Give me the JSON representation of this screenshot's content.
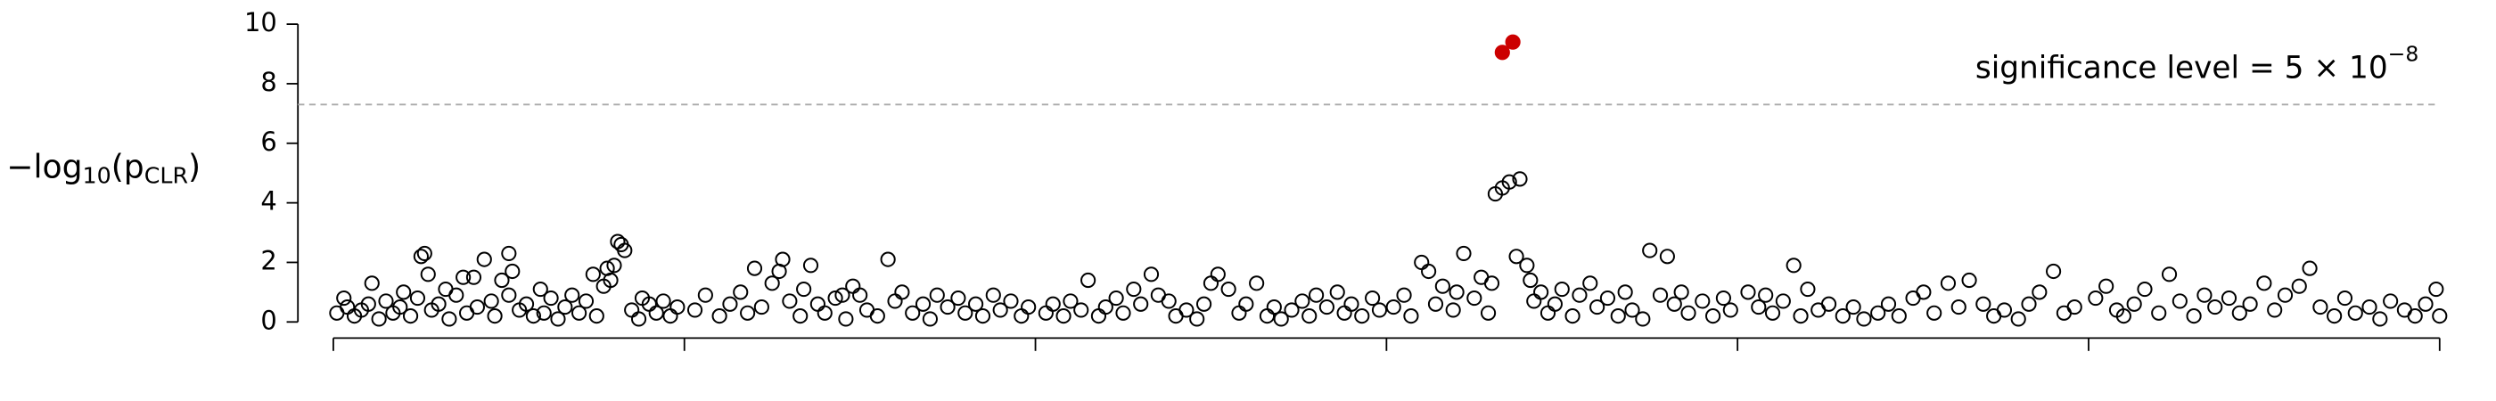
{
  "chart_data": {
    "type": "scatter",
    "ylabel": [
      "−log",
      "10",
      "(p",
      "CLR",
      ")"
    ],
    "annotation": [
      "significance level = 5 × 10",
      "−8"
    ],
    "hline": 7.3,
    "xlim": [
      0,
      6
    ],
    "xticks": [
      0,
      1,
      2,
      3,
      4,
      5,
      6
    ],
    "ylim": [
      0,
      10
    ],
    "yticks": [
      0,
      2,
      4,
      6,
      8,
      10
    ],
    "series": [
      {
        "color": "#000000",
        "filled": false,
        "x": [
          0.01,
          0.03,
          0.04,
          0.06,
          0.08,
          0.1,
          0.11,
          0.13,
          0.15,
          0.17,
          0.19,
          0.2,
          0.22,
          0.24,
          0.25,
          0.26,
          0.27,
          0.28,
          0.3,
          0.32,
          0.33,
          0.35,
          0.37,
          0.38,
          0.4,
          0.41,
          0.43,
          0.45,
          0.46,
          0.48,
          0.5,
          0.51,
          0.53,
          0.5,
          0.55,
          0.57,
          0.59,
          0.6,
          0.62,
          0.64,
          0.66,
          0.68,
          0.7,
          0.72,
          0.74,
          0.75,
          0.77,
          0.78,
          0.8,
          0.81,
          0.82,
          0.83,
          0.79,
          0.85,
          0.87,
          0.88,
          0.9,
          0.92,
          0.94,
          0.96,
          0.98,
          1.03,
          1.06,
          1.1,
          1.13,
          1.16,
          1.18,
          1.2,
          1.22,
          1.25,
          1.27,
          1.28,
          1.3,
          1.33,
          1.36,
          1.38,
          1.4,
          1.43,
          1.46,
          1.48,
          1.5,
          1.52,
          1.55,
          1.58,
          1.6,
          1.62,
          1.65,
          1.68,
          1.7,
          1.72,
          1.75,
          1.78,
          1.8,
          1.83,
          1.85,
          1.88,
          1.9,
          1.93,
          1.96,
          1.98,
          1.45,
          1.34,
          2.03,
          2.05,
          2.08,
          2.1,
          2.13,
          2.15,
          2.18,
          2.2,
          2.23,
          2.25,
          2.28,
          2.3,
          2.33,
          2.35,
          2.38,
          2.4,
          2.43,
          2.46,
          2.48,
          2.5,
          2.52,
          2.55,
          2.58,
          2.6,
          2.63,
          2.66,
          2.68,
          2.7,
          2.73,
          2.76,
          2.78,
          2.8,
          2.83,
          2.86,
          2.88,
          2.9,
          2.93,
          2.96,
          2.98,
          3.02,
          3.05,
          3.07,
          3.1,
          3.12,
          3.14,
          3.16,
          3.19,
          3.2,
          3.22,
          3.25,
          3.27,
          3.29,
          3.3,
          3.31,
          3.33,
          3.35,
          3.38,
          3.37,
          3.4,
          3.41,
          3.42,
          3.44,
          3.46,
          3.48,
          3.5,
          3.53,
          3.55,
          3.58,
          3.6,
          3.63,
          3.66,
          3.68,
          3.7,
          3.73,
          3.75,
          3.78,
          3.8,
          3.82,
          3.84,
          3.86,
          3.9,
          3.93,
          3.96,
          3.98,
          4.03,
          4.06,
          4.08,
          4.1,
          4.13,
          4.16,
          4.18,
          4.2,
          4.23,
          4.26,
          4.3,
          4.33,
          4.36,
          4.4,
          4.43,
          4.46,
          4.5,
          4.53,
          4.56,
          4.6,
          4.63,
          4.66,
          4.7,
          4.73,
          4.76,
          4.8,
          4.83,
          4.86,
          4.9,
          4.93,
          4.96,
          5.02,
          5.05,
          5.08,
          5.1,
          5.13,
          5.16,
          5.2,
          5.23,
          5.26,
          5.3,
          5.33,
          5.36,
          5.4,
          5.43,
          5.46,
          5.5,
          5.53,
          5.56,
          5.6,
          5.63,
          5.66,
          5.7,
          5.73,
          5.76,
          5.8,
          5.83,
          5.86,
          5.9,
          5.93,
          5.96,
          5.99,
          6.0
        ],
        "values": [
          0.3,
          0.8,
          0.5,
          0.2,
          0.4,
          0.6,
          1.3,
          0.1,
          0.7,
          0.3,
          0.5,
          1.0,
          0.2,
          0.8,
          2.2,
          2.3,
          1.6,
          0.4,
          0.6,
          1.1,
          0.1,
          0.9,
          1.5,
          0.3,
          1.5,
          0.5,
          2.1,
          0.7,
          0.2,
          1.4,
          0.9,
          1.7,
          0.4,
          2.3,
          0.6,
          0.2,
          1.1,
          0.3,
          0.8,
          0.1,
          0.5,
          0.9,
          0.3,
          0.7,
          1.6,
          0.2,
          1.2,
          1.8,
          1.9,
          2.7,
          2.6,
          2.4,
          1.4,
          0.4,
          0.1,
          0.8,
          0.6,
          0.3,
          0.7,
          0.2,
          0.5,
          0.4,
          0.9,
          0.2,
          0.6,
          1.0,
          0.3,
          1.8,
          0.5,
          1.3,
          1.7,
          2.1,
          0.7,
          0.2,
          1.9,
          0.6,
          0.3,
          0.8,
          0.1,
          1.2,
          0.9,
          0.4,
          0.2,
          2.1,
          0.7,
          1.0,
          0.3,
          0.6,
          0.1,
          0.9,
          0.5,
          0.8,
          0.3,
          0.6,
          0.2,
          0.9,
          0.4,
          0.7,
          0.2,
          0.5,
          0.9,
          1.1,
          0.3,
          0.6,
          0.2,
          0.7,
          0.4,
          1.4,
          0.2,
          0.5,
          0.8,
          0.3,
          1.1,
          0.6,
          1.6,
          0.9,
          0.7,
          0.2,
          0.4,
          0.1,
          0.6,
          1.3,
          1.6,
          1.1,
          0.3,
          0.6,
          1.3,
          0.2,
          0.5,
          0.1,
          0.4,
          0.7,
          0.2,
          0.9,
          0.5,
          1.0,
          0.3,
          0.6,
          0.2,
          0.8,
          0.4,
          0.5,
          0.9,
          0.2,
          2.0,
          1.7,
          0.6,
          1.2,
          0.4,
          1.0,
          2.3,
          0.8,
          1.5,
          0.3,
          1.3,
          4.3,
          4.5,
          4.7,
          4.8,
          2.2,
          1.9,
          1.4,
          0.7,
          1.0,
          0.3,
          0.6,
          1.1,
          0.2,
          0.9,
          1.3,
          0.5,
          0.8,
          0.2,
          1.0,
          0.4,
          0.1,
          2.4,
          0.9,
          2.2,
          0.6,
          1.0,
          0.3,
          0.7,
          0.2,
          0.8,
          0.4,
          1.0,
          0.5,
          0.9,
          0.3,
          0.7,
          1.9,
          0.2,
          1.1,
          0.4,
          0.6,
          0.2,
          0.5,
          0.1,
          0.3,
          0.6,
          0.2,
          0.8,
          1.0,
          0.3,
          1.3,
          0.5,
          1.4,
          0.6,
          0.2,
          0.4,
          0.1,
          0.6,
          1.0,
          1.7,
          0.3,
          0.5,
          0.8,
          1.2,
          0.4,
          0.2,
          0.6,
          1.1,
          0.3,
          1.6,
          0.7,
          0.2,
          0.9,
          0.5,
          0.8,
          0.3,
          0.6,
          1.3,
          0.4,
          0.9,
          1.2,
          1.8,
          0.5,
          0.2,
          0.8,
          0.3,
          0.5,
          0.1,
          0.7,
          0.4,
          0.2,
          0.6,
          1.1,
          0.2
        ]
      },
      {
        "color": "#cc0000",
        "filled": true,
        "x": [
          3.33,
          3.36
        ],
        "values": [
          9.05,
          9.4
        ]
      }
    ]
  }
}
